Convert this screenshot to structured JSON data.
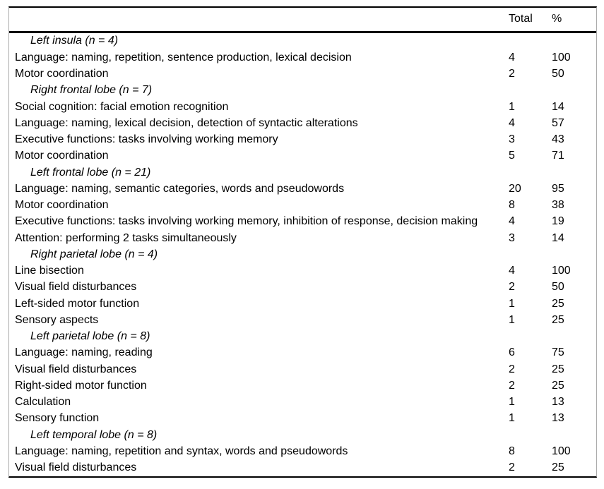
{
  "colors": {
    "background": "#ffffff",
    "text": "#000000",
    "heavy_rule": "#000000",
    "side_rule": "#aaaaaa"
  },
  "table": {
    "columns": {
      "label": "",
      "total": "Total",
      "percent": "%"
    },
    "sections": [
      {
        "header": "Left insula (n = 4)",
        "rows": [
          {
            "label": "Language: naming, repetition, sentence production, lexical decision",
            "total": "4",
            "percent": "100"
          },
          {
            "label": "Motor coordination",
            "total": "2",
            "percent": "50"
          }
        ]
      },
      {
        "header": "Right frontal lobe (n = 7)",
        "rows": [
          {
            "label": "Social cognition: facial emotion recognition",
            "total": "1",
            "percent": "14"
          },
          {
            "label": "Language: naming, lexical decision, detection of syntactic alterations",
            "total": "4",
            "percent": "57"
          },
          {
            "label": "Executive functions: tasks involving working memory",
            "total": "3",
            "percent": "43"
          },
          {
            "label": "Motor coordination",
            "total": "5",
            "percent": "71"
          }
        ]
      },
      {
        "header": "Left frontal lobe (n = 21)",
        "rows": [
          {
            "label": "Language: naming, semantic categories, words and pseudowords",
            "total": "20",
            "percent": "95"
          },
          {
            "label": "Motor coordination",
            "total": "8",
            "percent": "38"
          },
          {
            "label": "Executive functions: tasks involving working memory, inhibition of response, decision making",
            "total": "4",
            "percent": "19"
          },
          {
            "label": "Attention: performing 2 tasks simultaneously",
            "total": "3",
            "percent": "14"
          }
        ]
      },
      {
        "header": "Right parietal lobe (n = 4)",
        "rows": [
          {
            "label": "Line bisection",
            "total": "4",
            "percent": "100"
          },
          {
            "label": "Visual field disturbances",
            "total": "2",
            "percent": "50"
          },
          {
            "label": "Left-sided motor function",
            "total": "1",
            "percent": "25"
          },
          {
            "label": "Sensory aspects",
            "total": "1",
            "percent": "25"
          }
        ]
      },
      {
        "header": "Left parietal lobe (n = 8)",
        "rows": [
          {
            "label": "Language: naming, reading",
            "total": "6",
            "percent": "75"
          },
          {
            "label": "Visual field disturbances",
            "total": "2",
            "percent": "25"
          },
          {
            "label": "Right-sided motor function",
            "total": "2",
            "percent": "25"
          },
          {
            "label": "Calculation",
            "total": "1",
            "percent": "13"
          },
          {
            "label": "Sensory function",
            "total": "1",
            "percent": "13"
          }
        ]
      },
      {
        "header": "Left temporal lobe (n = 8)",
        "rows": [
          {
            "label": "Language: naming, repetition and syntax, words and pseudowords",
            "total": "8",
            "percent": "100"
          },
          {
            "label": "Visual field disturbances",
            "total": "2",
            "percent": "25"
          }
        ]
      }
    ]
  }
}
